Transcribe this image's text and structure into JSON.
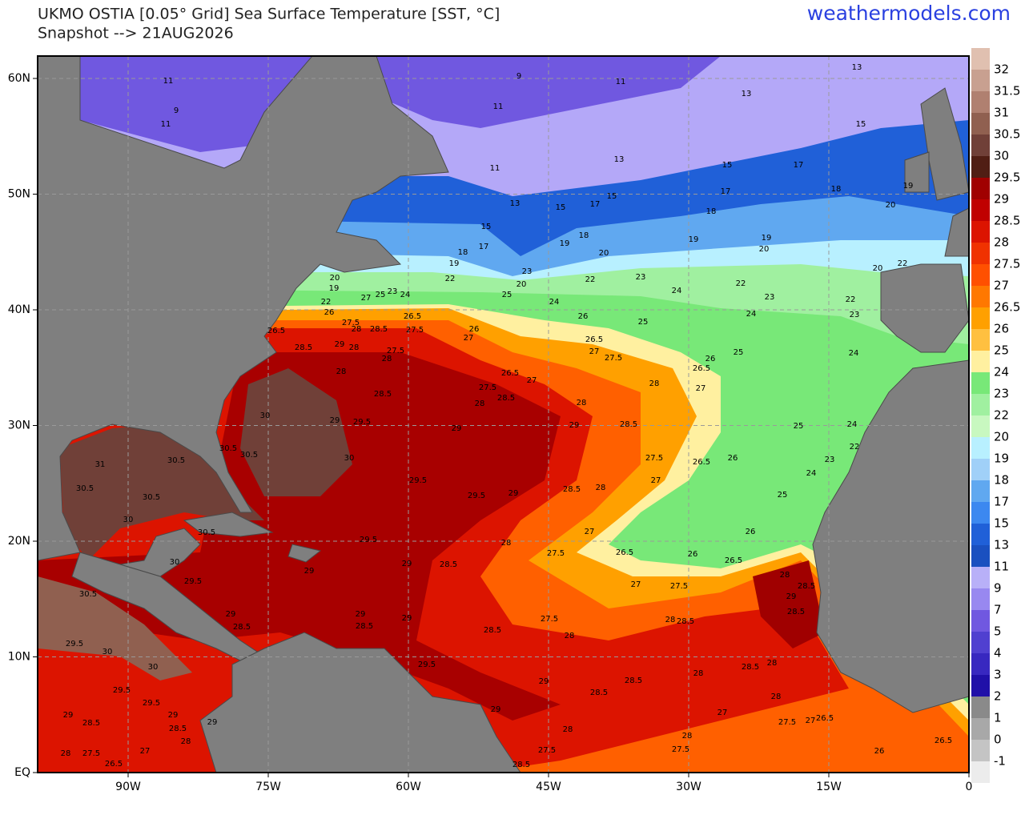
{
  "header": {
    "title": "UKMO OSTIA [0.05° Grid] Sea Surface Temperature [SST, °C]",
    "subtitle": "Snapshot --> 21AUG2026",
    "site": "weathermodels.com"
  },
  "axes": {
    "lon_ticks": [
      {
        "value": -90,
        "label": "90W"
      },
      {
        "value": -75,
        "label": "75W"
      },
      {
        "value": -60,
        "label": "60W"
      },
      {
        "value": -45,
        "label": "45W"
      },
      {
        "value": -30,
        "label": "30W"
      },
      {
        "value": -15,
        "label": "15W"
      },
      0
    ],
    "lat_ticks": [
      {
        "value": 60,
        "label": "60N"
      },
      {
        "value": 50,
        "label": "50N"
      },
      {
        "value": 40,
        "label": "40N"
      },
      {
        "value": 30,
        "label": "30N"
      },
      {
        "value": 20,
        "label": "20N"
      },
      {
        "value": 10,
        "label": "10N"
      },
      {
        "value": 0,
        "label": "EQ"
      }
    ],
    "grid": true
  },
  "colorbar": {
    "labels": [
      32,
      31.5,
      31,
      30.5,
      30,
      29.5,
      29,
      28.5,
      28,
      27.5,
      27,
      26.5,
      26,
      25,
      24,
      23,
      22,
      20,
      19,
      18,
      17,
      15,
      13,
      11,
      9,
      7,
      5,
      4,
      3,
      2,
      1,
      0,
      -1
    ],
    "colors": [
      "#e0c0b0",
      "#c8a090",
      "#b08070",
      "#906050",
      "#704038",
      "#501e14",
      "#a00000",
      "#c00000",
      "#dc1400",
      "#f03200",
      "#ff5000",
      "#ff7800",
      "#ffa000",
      "#ffc040",
      "#fff0a0",
      "#78e878",
      "#a0f0a0",
      "#c8f8c0",
      "#b8f0ff",
      "#a0d0f8",
      "#60a8f0",
      "#3c88f0",
      "#2060d8",
      "#1a50c0",
      "#b8b0f8",
      "#9888f0",
      "#7058e0",
      "#5040d0",
      "#3828c0",
      "#2010a8",
      "#8a8a8a",
      "#a8a8a8",
      "#c4c4c4",
      "#ececec"
    ]
  },
  "map": {
    "contour_labels": [
      11,
      9,
      11,
      9,
      11,
      13,
      13,
      11,
      11,
      13,
      13,
      15,
      15,
      17,
      17,
      18,
      19,
      20,
      15,
      17,
      15,
      18,
      15,
      17,
      18,
      19,
      18,
      20,
      19,
      19,
      20,
      19,
      23,
      20,
      22,
      22,
      23,
      24,
      22,
      23,
      20,
      22,
      20,
      19,
      22,
      26,
      27,
      25,
      23,
      24,
      25,
      24,
      26,
      25,
      24,
      22,
      23,
      26.5,
      27.5,
      28,
      28.5,
      26.5,
      27.5,
      26,
      27,
      28.5,
      29,
      28,
      27.5,
      28,
      26.5,
      27,
      27.5,
      26,
      26.5,
      25,
      24,
      28,
      26.5,
      27,
      27.5,
      28.5,
      28,
      28.5,
      28,
      27,
      28,
      30,
      29,
      29.5,
      29,
      29,
      28.5,
      25,
      24,
      22,
      30,
      31,
      30.5,
      30.5,
      30.5,
      27.5,
      26.5,
      26,
      23,
      24,
      29.5,
      29.5,
      29,
      28.5,
      28,
      27,
      25,
      30.5,
      30.5,
      30,
      30.5,
      26,
      27,
      29.5,
      28,
      27.5,
      26.5,
      26,
      26.5,
      30,
      29.5,
      29,
      29,
      28.5,
      27,
      27.5,
      28,
      28.5,
      29,
      28.5,
      30.5,
      29,
      28.5,
      29,
      28.5,
      29,
      28.5,
      27.5,
      28,
      28,
      28.5,
      29.5,
      30,
      29.5,
      30,
      28,
      28.5,
      28,
      29.5,
      29,
      28.5,
      28.5,
      28,
      29.5,
      29,
      28.5,
      29,
      29,
      28.5,
      28,
      29,
      27,
      27.5,
      27,
      26.5,
      28,
      28,
      27.5,
      27.5,
      28,
      27.5,
      27,
      26.5,
      28.5,
      26,
      26.5
    ]
  }
}
